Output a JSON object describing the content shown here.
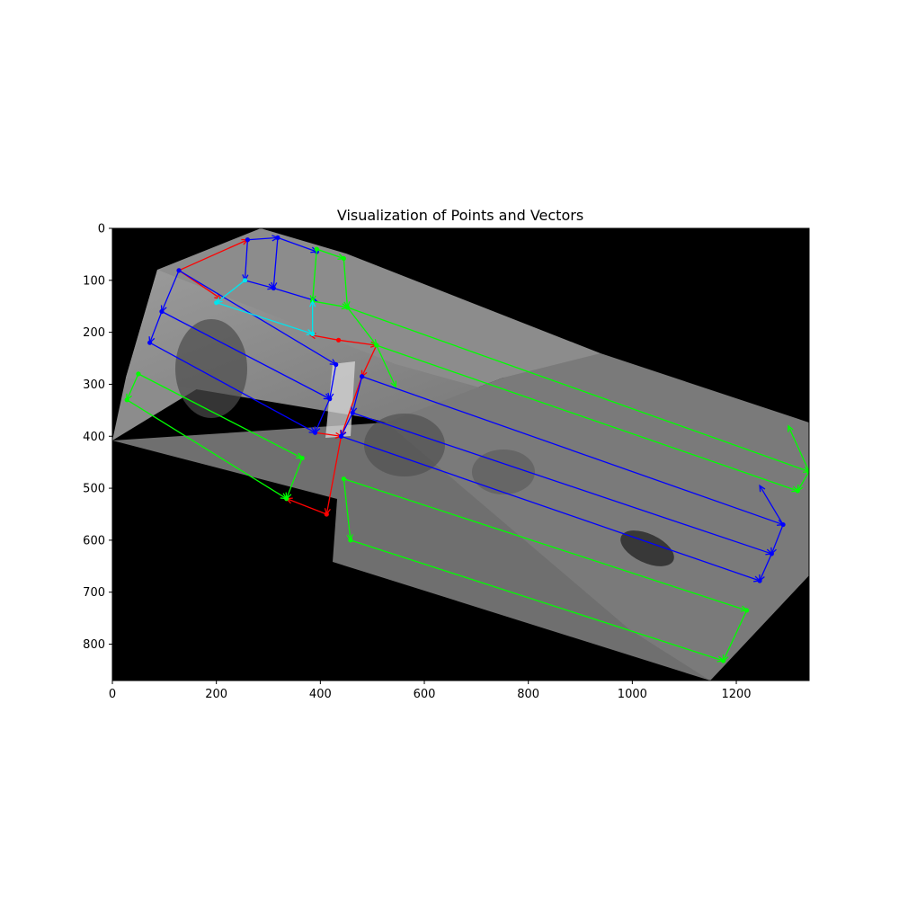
{
  "chart_data": {
    "type": "scatter",
    "title": "Visualization of Points and Vectors",
    "xlabel": "",
    "ylabel": "",
    "xlim": [
      0,
      1340
    ],
    "ylim": [
      870,
      0
    ],
    "y_inverted": true,
    "x_ticks": [
      0,
      200,
      400,
      600,
      800,
      1000,
      1200
    ],
    "y_ticks": [
      0,
      100,
      200,
      300,
      400,
      500,
      600,
      700,
      800
    ],
    "grid": false,
    "legend": "none",
    "background_image": "grayscale aerial street photograph",
    "colors": {
      "red": "#ff0000",
      "blue": "#0000ff",
      "green": "#00ff00",
      "cyan": "#00e5ee"
    },
    "series": [
      {
        "color": "red",
        "points": [
          [
            128,
            81
          ],
          [
            260,
            22
          ],
          [
            435,
            215
          ],
          [
            508,
            225
          ],
          [
            480,
            285
          ],
          [
            440,
            400
          ],
          [
            412,
            550
          ],
          [
            335,
            520
          ]
        ],
        "segments": [
          [
            [
              128,
              81
            ],
            [
              260,
              22
            ]
          ],
          [
            [
              128,
              81
            ],
            [
              208,
              135
            ]
          ],
          [
            [
              435,
              215
            ],
            [
              508,
              225
            ]
          ],
          [
            [
              435,
              215
            ],
            [
              380,
              205
            ]
          ],
          [
            [
              508,
              225
            ],
            [
              480,
              285
            ]
          ],
          [
            [
              480,
              285
            ],
            [
              440,
              400
            ]
          ],
          [
            [
              440,
              400
            ],
            [
              412,
              550
            ]
          ],
          [
            [
              412,
              550
            ],
            [
              335,
              520
            ]
          ],
          [
            [
              390,
              393
            ],
            [
              440,
              400
            ]
          ]
        ]
      },
      {
        "color": "blue",
        "points": [
          [
            260,
            22
          ],
          [
            318,
            18
          ],
          [
            393,
            45
          ],
          [
            255,
            100
          ],
          [
            310,
            115
          ],
          [
            128,
            81
          ],
          [
            95,
            160
          ],
          [
            72,
            220
          ],
          [
            430,
            262
          ],
          [
            480,
            285
          ],
          [
            418,
            328
          ],
          [
            462,
            355
          ],
          [
            390,
            393
          ],
          [
            440,
            400
          ],
          [
            1290,
            570
          ],
          [
            1268,
            626
          ],
          [
            1245,
            678
          ]
        ],
        "segments": [
          [
            [
              260,
              22
            ],
            [
              318,
              18
            ]
          ],
          [
            [
              318,
              18
            ],
            [
              393,
              45
            ]
          ],
          [
            [
              260,
              22
            ],
            [
              255,
              100
            ]
          ],
          [
            [
              318,
              18
            ],
            [
              310,
              115
            ]
          ],
          [
            [
              255,
              100
            ],
            [
              310,
              115
            ]
          ],
          [
            [
              310,
              115
            ],
            [
              393,
              140
            ]
          ],
          [
            [
              128,
              81
            ],
            [
              95,
              160
            ]
          ],
          [
            [
              95,
              160
            ],
            [
              72,
              220
            ]
          ],
          [
            [
              128,
              81
            ],
            [
              430,
              262
            ]
          ],
          [
            [
              95,
              160
            ],
            [
              418,
              328
            ]
          ],
          [
            [
              72,
              220
            ],
            [
              390,
              393
            ]
          ],
          [
            [
              430,
              262
            ],
            [
              418,
              328
            ]
          ],
          [
            [
              418,
              328
            ],
            [
              390,
              393
            ]
          ],
          [
            [
              480,
              285
            ],
            [
              462,
              355
            ]
          ],
          [
            [
              462,
              355
            ],
            [
              440,
              400
            ]
          ],
          [
            [
              480,
              285
            ],
            [
              1290,
              570
            ]
          ],
          [
            [
              462,
              355
            ],
            [
              1268,
              626
            ]
          ],
          [
            [
              440,
              400
            ],
            [
              1245,
              678
            ]
          ],
          [
            [
              1290,
              570
            ],
            [
              1268,
              626
            ]
          ],
          [
            [
              1268,
              626
            ],
            [
              1245,
              678
            ]
          ],
          [
            [
              1290,
              570
            ],
            [
              1245,
              495
            ]
          ]
        ]
      },
      {
        "color": "green",
        "points": [
          [
            393,
            40
          ],
          [
            445,
            58
          ],
          [
            385,
            140
          ],
          [
            452,
            152
          ],
          [
            508,
            225
          ],
          [
            50,
            280
          ],
          [
            28,
            330
          ],
          [
            365,
            442
          ],
          [
            335,
            520
          ],
          [
            445,
            482
          ],
          [
            458,
            600
          ],
          [
            1340,
            468
          ],
          [
            1318,
            505
          ],
          [
            1220,
            735
          ],
          [
            1175,
            832
          ]
        ],
        "segments": [
          [
            [
              393,
              40
            ],
            [
              445,
              58
            ]
          ],
          [
            [
              393,
              40
            ],
            [
              385,
              140
            ]
          ],
          [
            [
              445,
              58
            ],
            [
              452,
              152
            ]
          ],
          [
            [
              385,
              140
            ],
            [
              452,
              152
            ]
          ],
          [
            [
              452,
              152
            ],
            [
              1340,
              468
            ]
          ],
          [
            [
              508,
              225
            ],
            [
              1318,
              505
            ]
          ],
          [
            [
              452,
              152
            ],
            [
              508,
              225
            ]
          ],
          [
            [
              508,
              225
            ],
            [
              545,
              305
            ]
          ],
          [
            [
              50,
              280
            ],
            [
              28,
              330
            ]
          ],
          [
            [
              50,
              280
            ],
            [
              365,
              442
            ]
          ],
          [
            [
              28,
              330
            ],
            [
              335,
              520
            ]
          ],
          [
            [
              365,
              442
            ],
            [
              335,
              520
            ]
          ],
          [
            [
              445,
              482
            ],
            [
              458,
              600
            ]
          ],
          [
            [
              445,
              482
            ],
            [
              1220,
              735
            ]
          ],
          [
            [
              458,
              600
            ],
            [
              1175,
              832
            ]
          ],
          [
            [
              1220,
              735
            ],
            [
              1175,
              832
            ]
          ],
          [
            [
              1340,
              468
            ],
            [
              1318,
              505
            ]
          ],
          [
            [
              1340,
              468
            ],
            [
              1300,
              380
            ]
          ]
        ]
      },
      {
        "color": "cyan",
        "points": [
          [
            255,
            100
          ],
          [
            200,
            143
          ],
          [
            385,
            203
          ]
        ],
        "segments": [
          [
            [
              255,
              100
            ],
            [
              200,
              143
            ]
          ],
          [
            [
              200,
              143
            ],
            [
              385,
              203
            ]
          ],
          [
            [
              385,
              203
            ],
            [
              385,
              140
            ]
          ]
        ]
      }
    ]
  }
}
